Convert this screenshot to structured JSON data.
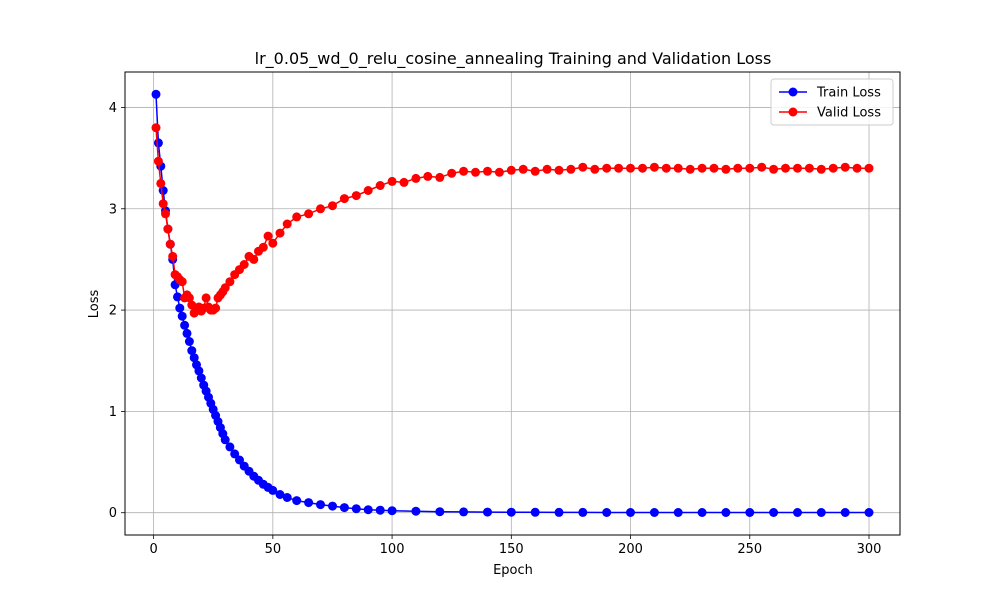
{
  "chart_data": {
    "type": "line",
    "title": "lr_0.05_wd_0_relu_cosine_annealing Training and Validation Loss",
    "xlabel": "Epoch",
    "ylabel": "Loss",
    "xlim": [
      -12,
      313
    ],
    "ylim": [
      -0.22,
      4.35
    ],
    "xticks": [
      0,
      50,
      100,
      150,
      200,
      250,
      300
    ],
    "yticks": [
      0,
      1,
      2,
      3,
      4
    ],
    "grid": true,
    "legend_position": "top-right",
    "legend": [
      {
        "label": "Train Loss",
        "color": "#0000ff"
      },
      {
        "label": "Valid Loss",
        "color": "#ff0000"
      }
    ],
    "series": [
      {
        "name": "Train Loss",
        "color": "#0000ff",
        "x": [
          1,
          2,
          3,
          4,
          5,
          6,
          7,
          8,
          9,
          10,
          11,
          12,
          13,
          14,
          15,
          16,
          17,
          18,
          19,
          20,
          21,
          22,
          23,
          24,
          25,
          26,
          27,
          28,
          29,
          30,
          32,
          34,
          36,
          38,
          40,
          42,
          44,
          46,
          48,
          50,
          53,
          56,
          60,
          65,
          70,
          75,
          80,
          85,
          90,
          95,
          100,
          110,
          120,
          130,
          140,
          150,
          160,
          170,
          180,
          190,
          200,
          210,
          220,
          230,
          240,
          250,
          260,
          270,
          280,
          290,
          300
        ],
        "y": [
          4.13,
          3.65,
          3.42,
          3.18,
          2.98,
          2.8,
          2.65,
          2.5,
          2.25,
          2.13,
          2.02,
          1.94,
          1.85,
          1.77,
          1.69,
          1.6,
          1.53,
          1.46,
          1.4,
          1.33,
          1.26,
          1.2,
          1.14,
          1.08,
          1.02,
          0.96,
          0.9,
          0.84,
          0.78,
          0.72,
          0.65,
          0.58,
          0.52,
          0.46,
          0.41,
          0.36,
          0.32,
          0.28,
          0.25,
          0.22,
          0.18,
          0.15,
          0.12,
          0.1,
          0.08,
          0.065,
          0.05,
          0.04,
          0.03,
          0.025,
          0.02,
          0.015,
          0.01,
          0.008,
          0.006,
          0.005,
          0.004,
          0.003,
          0.003,
          0.002,
          0.002,
          0.002,
          0.002,
          0.002,
          0.002,
          0.002,
          0.002,
          0.002,
          0.002,
          0.002,
          0.002
        ]
      },
      {
        "name": "Valid Loss",
        "color": "#ff0000",
        "x": [
          1,
          2,
          3,
          4,
          5,
          6,
          7,
          8,
          9,
          10,
          11,
          12,
          13,
          14,
          15,
          16,
          17,
          18,
          19,
          20,
          21,
          22,
          23,
          24,
          25,
          26,
          27,
          28,
          29,
          30,
          32,
          34,
          36,
          38,
          40,
          42,
          44,
          46,
          48,
          50,
          53,
          56,
          60,
          65,
          70,
          75,
          80,
          85,
          90,
          95,
          100,
          105,
          110,
          115,
          120,
          125,
          130,
          135,
          140,
          145,
          150,
          155,
          160,
          165,
          170,
          175,
          180,
          185,
          190,
          195,
          200,
          205,
          210,
          215,
          220,
          225,
          230,
          235,
          240,
          245,
          250,
          255,
          260,
          265,
          270,
          275,
          280,
          285,
          290,
          295,
          300
        ],
        "y": [
          3.8,
          3.47,
          3.25,
          3.05,
          2.95,
          2.8,
          2.65,
          2.53,
          2.35,
          2.33,
          2.3,
          2.28,
          2.12,
          2.15,
          2.12,
          2.05,
          1.97,
          2.02,
          2.03,
          1.99,
          2.02,
          2.12,
          2.03,
          2.0,
          2.0,
          2.02,
          2.12,
          2.15,
          2.18,
          2.22,
          2.28,
          2.35,
          2.4,
          2.45,
          2.53,
          2.5,
          2.58,
          2.62,
          2.73,
          2.66,
          2.76,
          2.85,
          2.92,
          2.95,
          3.0,
          3.03,
          3.1,
          3.13,
          3.18,
          3.23,
          3.27,
          3.26,
          3.3,
          3.32,
          3.31,
          3.35,
          3.37,
          3.36,
          3.37,
          3.36,
          3.38,
          3.39,
          3.37,
          3.39,
          3.38,
          3.39,
          3.41,
          3.39,
          3.4,
          3.4,
          3.4,
          3.4,
          3.41,
          3.4,
          3.4,
          3.39,
          3.4,
          3.4,
          3.39,
          3.4,
          3.4,
          3.41,
          3.39,
          3.4,
          3.4,
          3.4,
          3.39,
          3.4,
          3.41,
          3.4,
          3.4
        ]
      }
    ]
  }
}
